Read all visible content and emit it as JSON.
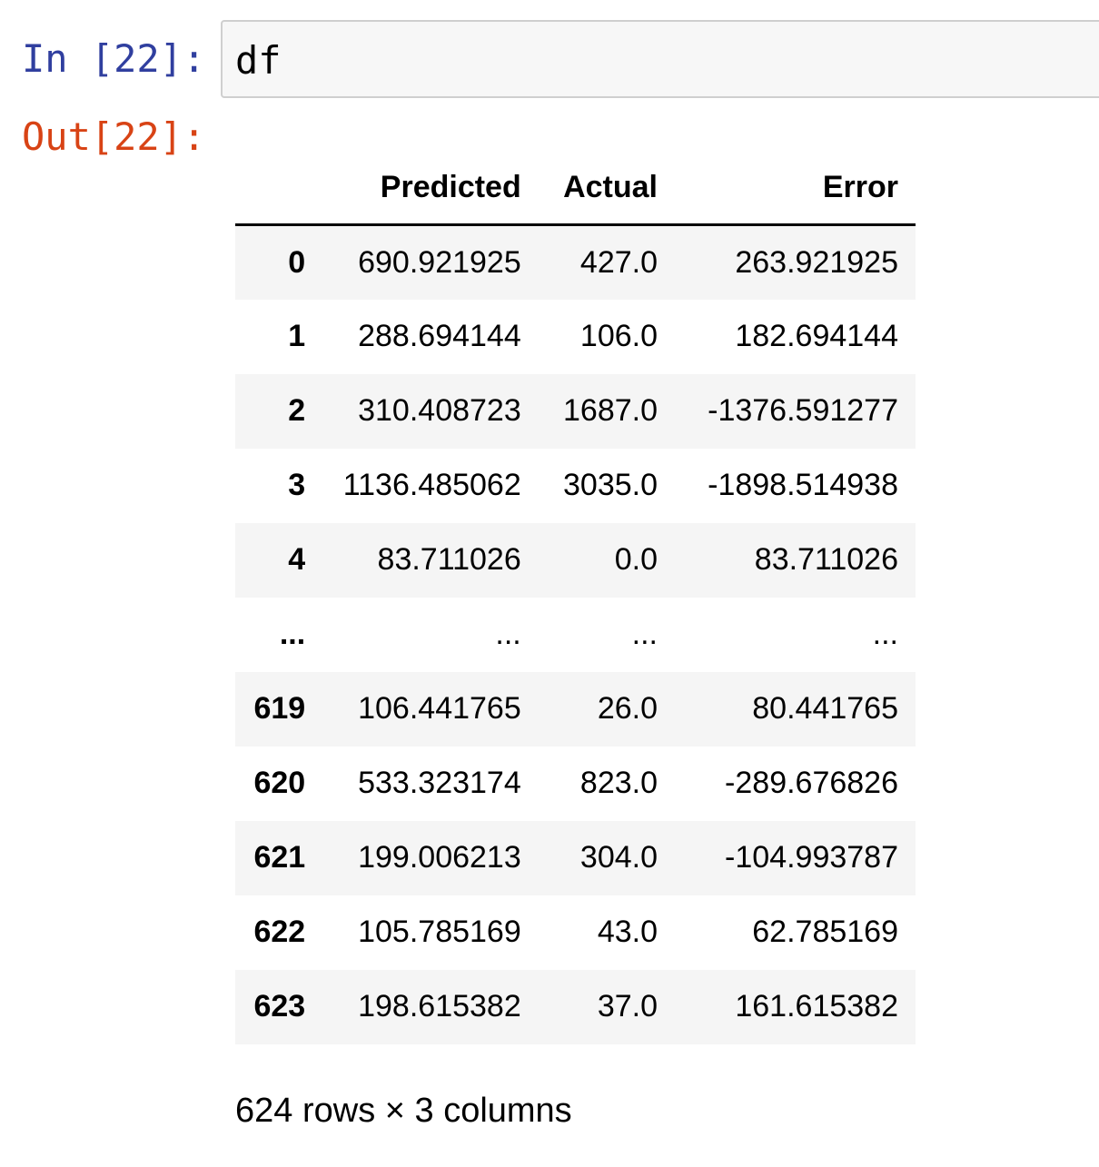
{
  "input_cell": {
    "prompt": "In [22]:",
    "code": "df"
  },
  "output_cell": {
    "prompt": "Out[22]:",
    "table": {
      "columns": [
        "Predicted",
        "Actual",
        "Error"
      ],
      "rows": [
        {
          "index": "0",
          "values": [
            "690.921925",
            "427.0",
            "263.921925"
          ]
        },
        {
          "index": "1",
          "values": [
            "288.694144",
            "106.0",
            "182.694144"
          ]
        },
        {
          "index": "2",
          "values": [
            "310.408723",
            "1687.0",
            "-1376.591277"
          ]
        },
        {
          "index": "3",
          "values": [
            "1136.485062",
            "3035.0",
            "-1898.514938"
          ]
        },
        {
          "index": "4",
          "values": [
            "83.711026",
            "0.0",
            "83.711026"
          ]
        },
        {
          "index": "...",
          "values": [
            "...",
            "...",
            "..."
          ]
        },
        {
          "index": "619",
          "values": [
            "106.441765",
            "26.0",
            "80.441765"
          ]
        },
        {
          "index": "620",
          "values": [
            "533.323174",
            "823.0",
            "-289.676826"
          ]
        },
        {
          "index": "621",
          "values": [
            "199.006213",
            "304.0",
            "-104.993787"
          ]
        },
        {
          "index": "622",
          "values": [
            "105.785169",
            "43.0",
            "62.785169"
          ]
        },
        {
          "index": "623",
          "values": [
            "198.615382",
            "37.0",
            "161.615382"
          ]
        }
      ]
    },
    "shape_note": "624 rows × 3 columns"
  }
}
